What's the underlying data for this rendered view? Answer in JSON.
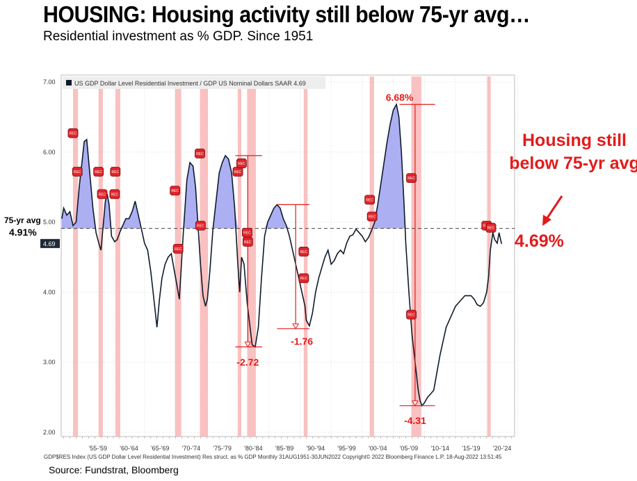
{
  "header": {
    "title": "HOUSING: Housing activity still below 75-yr avg…",
    "subtitle": "Residential investment as % GDP.  Since 1951"
  },
  "source": "Source: Fundstrat, Bloomberg",
  "callout": {
    "line1": "Housing still",
    "line2": "below 75-yr avg"
  },
  "current_value": "4.69%",
  "avg_label": "75-yr avg",
  "avg_value": "4.91%",
  "chart_data": {
    "type": "line",
    "legend": "US GDP Dollar Level Residential Investment / GDP US Nominal Dollars SAAR 4.69",
    "legend_position": "top-left",
    "footer": "GDP$RES Index (US GDP Dollar Level Residential Investment) Res struct. as % GDP  Monthly 31AUG1951-30JUN2022  Copyright© 2022 Bloomberg Finance L.P.  18-Aug-2022 13:51:45",
    "ylim": [
      2.0,
      7.0
    ],
    "yticks": [
      "7.00",
      "6.00",
      "5.00",
      "4.00",
      "3.00",
      "2.00"
    ],
    "xlim": [
      1951.6,
      2024.5
    ],
    "xticks": [
      {
        "label": "'55-'59",
        "year": 1957.5
      },
      {
        "label": "'60-'64",
        "year": 1962.5
      },
      {
        "label": "'65-'69",
        "year": 1967.5
      },
      {
        "label": "'70-'74",
        "year": 1972.5
      },
      {
        "label": "'75-'79",
        "year": 1977.5
      },
      {
        "label": "'80-'84",
        "year": 1982.5
      },
      {
        "label": "'85-'89",
        "year": 1987.5
      },
      {
        "label": "'90-'94",
        "year": 1992.5
      },
      {
        "label": "'95-'99",
        "year": 1997.5
      },
      {
        "label": "'00-'04",
        "year": 2002.5
      },
      {
        "label": "'05-'09",
        "year": 2007.5
      },
      {
        "label": "'10-'14",
        "year": 2012.5
      },
      {
        "label": "'15-'19",
        "year": 2017.5
      },
      {
        "label": "'20-'24",
        "year": 2022.5
      }
    ],
    "average": 4.91,
    "last_value_label": "4.69",
    "series": [
      {
        "x": [
          1951.7,
          1952.0,
          1952.5,
          1953.0,
          1953.5,
          1954.0,
          1954.5,
          1955.0,
          1955.3,
          1955.7,
          1956.2,
          1956.7,
          1957.2,
          1957.7,
          1958.0,
          1958.3,
          1958.7,
          1959.0,
          1959.3,
          1959.7,
          1960.2,
          1960.6,
          1961.0,
          1961.5,
          1962.0,
          1962.5,
          1963.0,
          1963.5,
          1964.0,
          1964.5,
          1965.0,
          1965.5,
          1966.0,
          1966.5,
          1967.0,
          1967.4,
          1967.8,
          1968.3,
          1968.8,
          1969.3,
          1969.8,
          1970.2,
          1970.6,
          1971.2,
          1971.8,
          1972.3,
          1972.8,
          1973.2,
          1973.6,
          1974.0,
          1974.4,
          1974.8,
          1975.1,
          1975.5,
          1976.0,
          1976.5,
          1977.0,
          1977.5,
          1978.0,
          1978.5,
          1979.0,
          1979.5,
          1980.0,
          1980.3,
          1980.6,
          1981.0,
          1981.5,
          1981.9,
          1982.3,
          1982.8,
          1983.3,
          1983.8,
          1984.3,
          1984.8,
          1985.3,
          1985.8,
          1986.3,
          1986.8,
          1987.3,
          1987.8,
          1988.3,
          1988.8,
          1989.3,
          1989.8,
          1990.3,
          1990.8,
          1991.0,
          1991.5,
          1992.0,
          1992.5,
          1993.0,
          1993.5,
          1994.0,
          1994.5,
          1995.0,
          1995.5,
          1996.0,
          1996.5,
          1997.0,
          1997.5,
          1998.0,
          1998.5,
          1999.0,
          1999.5,
          2000.0,
          2000.5,
          2001.0,
          2001.5,
          2002.0,
          2002.5,
          2003.0,
          2003.5,
          2004.0,
          2004.5,
          2005.0,
          2005.5,
          2005.9,
          2006.3,
          2006.7,
          2007.0,
          2007.5,
          2008.0,
          2008.5,
          2009.0,
          2009.3,
          2009.6,
          2010.0,
          2010.5,
          2011.0,
          2011.5,
          2012.0,
          2012.5,
          2013.0,
          2013.5,
          2014.0,
          2014.5,
          2015.0,
          2015.5,
          2016.0,
          2016.5,
          2017.0,
          2017.5,
          2018.0,
          2018.5,
          2019.0,
          2019.5,
          2020.0,
          2020.3,
          2020.6,
          2021.0,
          2021.3,
          2021.7,
          2022.0,
          2022.4
        ],
        "y": [
          5.05,
          5.2,
          5.1,
          5.15,
          4.95,
          5.0,
          5.5,
          5.9,
          6.15,
          6.18,
          5.7,
          5.2,
          4.85,
          4.68,
          4.6,
          4.9,
          5.3,
          5.4,
          5.25,
          4.8,
          4.72,
          4.75,
          4.85,
          4.95,
          5.05,
          5.05,
          5.15,
          5.3,
          5.1,
          4.9,
          4.7,
          4.6,
          4.3,
          3.9,
          3.5,
          3.9,
          4.2,
          4.4,
          4.5,
          4.55,
          4.3,
          4.1,
          3.9,
          4.8,
          5.6,
          5.85,
          5.8,
          5.5,
          4.95,
          4.4,
          3.95,
          3.8,
          3.9,
          4.3,
          4.9,
          5.3,
          5.7,
          5.85,
          5.95,
          5.9,
          5.7,
          5.2,
          4.4,
          4.0,
          4.5,
          4.4,
          3.85,
          3.55,
          3.25,
          3.22,
          3.5,
          4.2,
          4.8,
          5.0,
          5.1,
          5.2,
          5.25,
          5.2,
          5.05,
          4.95,
          4.8,
          4.6,
          4.4,
          4.2,
          4.0,
          3.8,
          3.6,
          3.52,
          3.7,
          4.0,
          4.2,
          4.35,
          4.5,
          4.6,
          4.4,
          4.45,
          4.55,
          4.6,
          4.55,
          4.7,
          4.8,
          4.82,
          4.9,
          4.85,
          4.8,
          4.72,
          4.78,
          4.88,
          5.0,
          5.25,
          5.55,
          5.85,
          6.15,
          6.4,
          6.6,
          6.68,
          6.5,
          6.0,
          5.3,
          4.7,
          4.0,
          3.4,
          3.0,
          2.6,
          2.45,
          2.38,
          2.42,
          2.5,
          2.55,
          2.6,
          2.85,
          3.1,
          3.3,
          3.5,
          3.6,
          3.7,
          3.8,
          3.85,
          3.9,
          3.95,
          3.95,
          3.95,
          3.9,
          3.82,
          3.8,
          3.85,
          4.0,
          4.2,
          4.6,
          4.85,
          4.75,
          4.7,
          4.85,
          4.69
        ]
      }
    ],
    "recessions": [
      [
        1953.5,
        1954.3
      ],
      [
        1957.6,
        1958.3
      ],
      [
        1960.3,
        1961.1
      ],
      [
        1969.9,
        1970.9
      ],
      [
        1973.9,
        1975.2
      ],
      [
        1980.0,
        1980.5
      ],
      [
        1981.5,
        1982.9
      ],
      [
        1990.6,
        1991.2
      ],
      [
        2001.2,
        2001.9
      ],
      [
        2007.9,
        2009.5
      ],
      [
        2020.1,
        2020.4
      ]
    ],
    "rec_tags": [
      {
        "label": "REC",
        "year": 1953.5,
        "value": 6.27
      },
      {
        "label": "REC",
        "year": 1954.2,
        "value": 5.72
      },
      {
        "label": "REC",
        "year": 1957.6,
        "value": 5.72
      },
      {
        "label": "REC",
        "year": 1958.2,
        "value": 5.4
      },
      {
        "label": "REC",
        "year": 1960.3,
        "value": 5.72
      },
      {
        "label": "REC",
        "year": 1960.2,
        "value": 5.4
      },
      {
        "label": "REC",
        "year": 1969.9,
        "value": 5.45
      },
      {
        "label": "REC",
        "year": 1970.4,
        "value": 4.62
      },
      {
        "label": "REC",
        "year": 1973.9,
        "value": 5.98
      },
      {
        "label": "REC",
        "year": 1974.0,
        "value": 4.95
      },
      {
        "label": "REC",
        "year": 1980.0,
        "value": 5.72
      },
      {
        "label": "REC",
        "year": 1980.6,
        "value": 5.84
      },
      {
        "label": "REC",
        "year": 1981.5,
        "value": 4.85
      },
      {
        "label": "REC",
        "year": 1981.6,
        "value": 4.72
      },
      {
        "label": "REC",
        "year": 1990.6,
        "value": 4.58
      },
      {
        "label": "REC",
        "year": 1990.6,
        "value": 4.2
      },
      {
        "label": "REC",
        "year": 2001.2,
        "value": 5.32
      },
      {
        "label": "REC",
        "year": 2001.6,
        "value": 5.08
      },
      {
        "label": "REC",
        "year": 2007.9,
        "value": 5.63
      },
      {
        "label": "REC",
        "year": 2007.9,
        "value": 3.68
      },
      {
        "label": "REC",
        "year": 2020.0,
        "value": 4.95
      },
      {
        "label": "REC",
        "year": 2020.7,
        "value": 4.92
      }
    ],
    "annotations": [
      {
        "label": "",
        "x_start": 1979.6,
        "x_end": 1983.9,
        "peak": 5.95,
        "trough": 3.22,
        "line_x": 1981.6
      },
      {
        "label": "-2.72",
        "x": 1981.6,
        "value": 3.0
      },
      {
        "label": "",
        "x_start": 1986.3,
        "x_end": 1991.5,
        "peak": 5.25,
        "trough": 3.48,
        "line_x": 1989.3
      },
      {
        "label": "-1.76",
        "x": 1990.3,
        "value": 3.3
      },
      {
        "label": "6.68%",
        "x": 2006.0,
        "value": 6.78
      },
      {
        "label": "",
        "x_start": 2006.0,
        "x_end": 2011.7,
        "peak": 6.68,
        "trough": 2.38,
        "line_x": 2008.5
      },
      {
        "label": "-4.31",
        "x": 2008.5,
        "value": 2.17
      }
    ]
  }
}
